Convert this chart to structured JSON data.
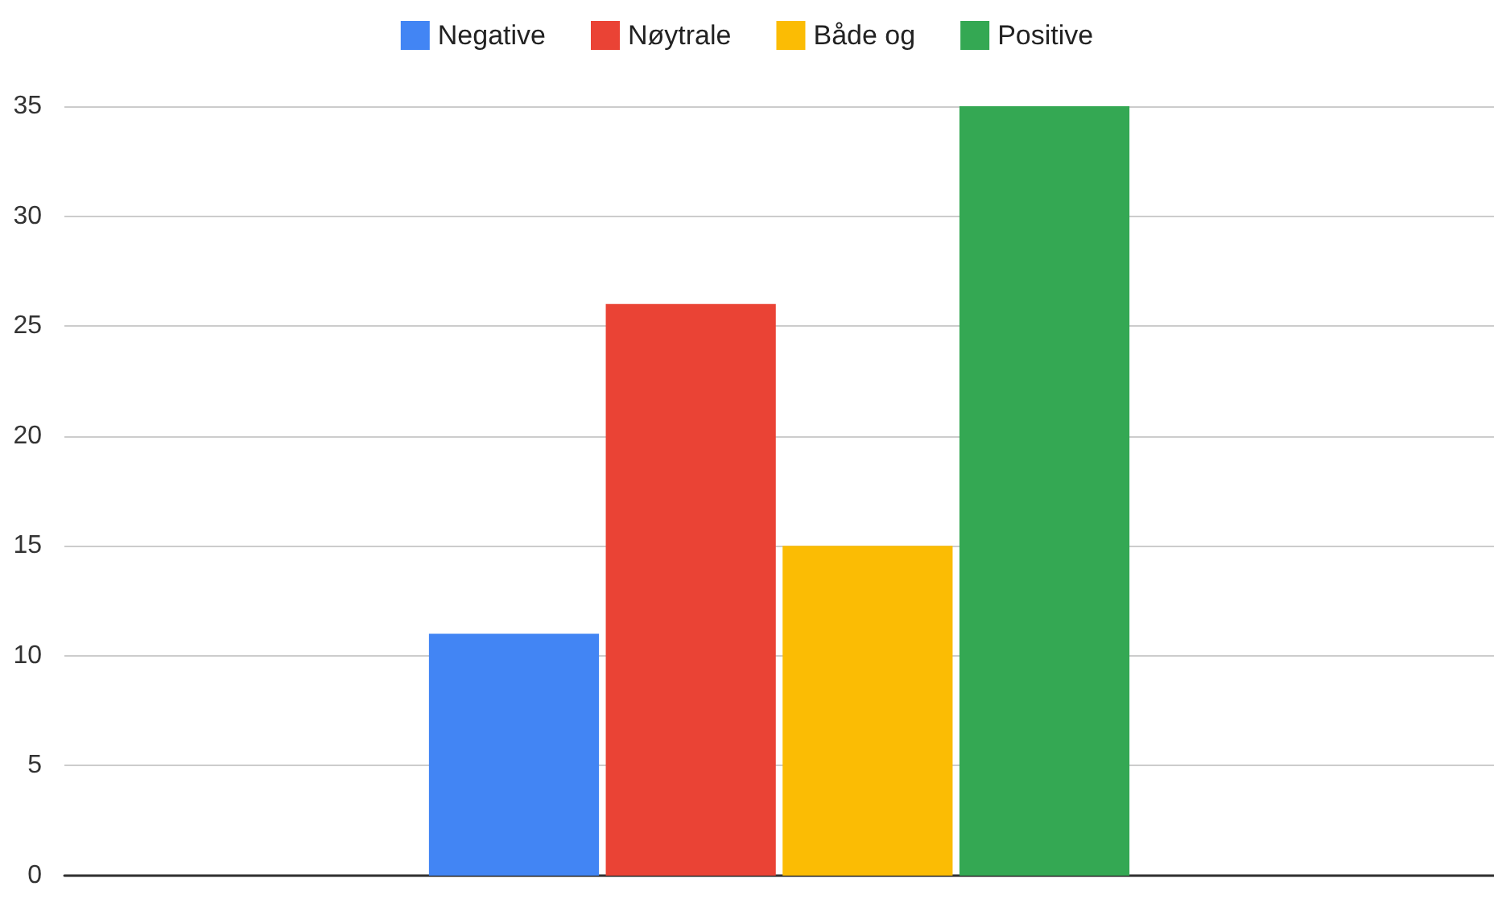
{
  "chart_data": {
    "type": "bar",
    "categories": [
      null
    ],
    "series": [
      {
        "name": "Negative",
        "color": "#4285f4",
        "values": [
          11
        ]
      },
      {
        "name": "Nøytrale",
        "color": "#ea4335",
        "values": [
          26
        ]
      },
      {
        "name": "Både og",
        "color": "#fbbc04",
        "values": [
          15
        ]
      },
      {
        "name": "Positive",
        "color": "#34a853",
        "values": [
          35
        ]
      }
    ],
    "ylim": [
      0,
      35
    ],
    "yticks": [
      0,
      5,
      10,
      15,
      20,
      25,
      30,
      35
    ],
    "grid": "y",
    "legend": "top"
  }
}
